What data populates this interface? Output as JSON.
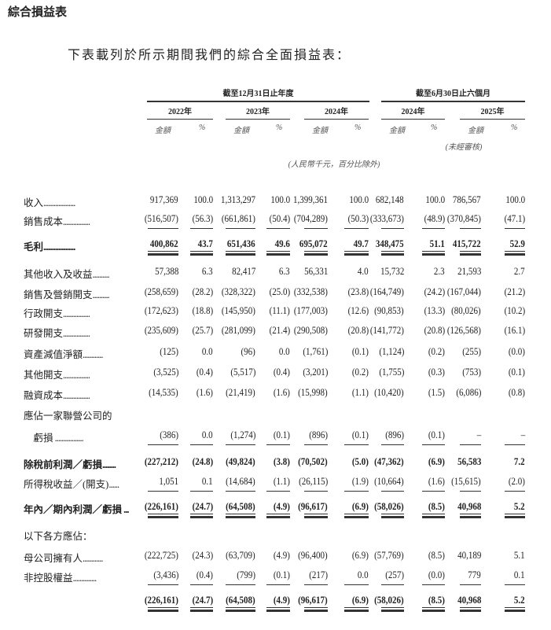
{
  "title": "綜合損益表",
  "intro": "下表載列於所示期間我們的綜合全面損益表：",
  "header": {
    "group_year": "截至12月31日止年度",
    "group_half": "截至6月30日止六個月",
    "years": [
      "2022年",
      "2023年",
      "2024年",
      "2024年",
      "2025年"
    ],
    "amount_label": "金額",
    "pct_label": "%",
    "unaudited": "(未經審核)",
    "unit_note": "(人民幣千元，百分比除外)"
  },
  "rows": [
    {
      "label": "收入",
      "dots": "...................",
      "values": [
        "917,369",
        "100.0",
        "1,313,297",
        "100.0",
        "1,399,361",
        "100.0",
        "682,148",
        "100.0",
        "786,567",
        "100.0"
      ]
    },
    {
      "label": "銷售成本",
      "dots": "................",
      "values": [
        "(516,507)",
        "(56.3)",
        "(661,861)",
        "(50.4)",
        "(704,289)",
        "(50.3)",
        "(333,673)",
        "(48.9)",
        "(370,845)",
        "(47.1)"
      ],
      "rule": "single"
    },
    {
      "label": "毛利",
      "dots": "...................",
      "values": [
        "400,862",
        "43.7",
        "651,436",
        "49.6",
        "695,072",
        "49.7",
        "348,475",
        "51.1",
        "415,722",
        "52.9"
      ],
      "bold": true,
      "rule": "double"
    },
    {
      "label": "其他收入及收益",
      "dots": "..........",
      "values": [
        "57,388",
        "6.3",
        "82,417",
        "6.3",
        "56,331",
        "4.0",
        "15,732",
        "2.3",
        "21,593",
        "2.7"
      ]
    },
    {
      "label": "銷售及營銷開支",
      "dots": "..........",
      "values": [
        "(258,659)",
        "(28.2)",
        "(328,322)",
        "(25.0)",
        "(332,538)",
        "(23.8)",
        "(164,749)",
        "(24.2)",
        "(167,044)",
        "(21.2)"
      ]
    },
    {
      "label": "行政開支",
      "dots": "................",
      "values": [
        "(172,623)",
        "(18.8)",
        "(145,950)",
        "(11.1)",
        "(177,003)",
        "(12.6)",
        "(90,853)",
        "(13.3)",
        "(80,026)",
        "(10.2)"
      ]
    },
    {
      "label": "研發開支",
      "dots": "................",
      "values": [
        "(235,609)",
        "(25.7)",
        "(281,099)",
        "(21.4)",
        "(290,508)",
        "(20.8)",
        "(141,772)",
        "(20.8)",
        "(126,568)",
        "(16.1)"
      ]
    },
    {
      "label": "資產減值淨額",
      "dots": "............",
      "values": [
        "(125)",
        "0.0",
        "(96)",
        "0.0",
        "(1,761)",
        "(0.1)",
        "(1,124)",
        "(0.2)",
        "(255)",
        "(0.0)"
      ]
    },
    {
      "label": "其他開支",
      "dots": "................",
      "values": [
        "(3,525)",
        "(0.4)",
        "(5,517)",
        "(0.4)",
        "(3,201)",
        "(0.2)",
        "(1,755)",
        "(0.3)",
        "(753)",
        "(0.1)"
      ]
    },
    {
      "label": "融資成本",
      "dots": "................",
      "values": [
        "(14,535)",
        "(1.6)",
        "(21,419)",
        "(1.6)",
        "(15,998)",
        "(1.1)",
        "(10,420)",
        "(1.5)",
        "(6,086)",
        "(0.8)"
      ]
    },
    {
      "label": "應佔一家聯營公司的",
      "dots": "",
      "values": []
    },
    {
      "label": "　虧損",
      "dots": " .................",
      "values": [
        "(386)",
        "0.0",
        "(1,274)",
        "(0.1)",
        "(896)",
        "(0.1)",
        "(896)",
        "(0.1)",
        "–",
        "–"
      ],
      "rule": "single"
    },
    {
      "label": "除稅前利潤／虧損",
      "dots": "........",
      "values": [
        "(227,212)",
        "(24.8)",
        "(49,824)",
        "(3.8)",
        "(70,502)",
        "(5.0)",
        "(47,362)",
        "(6.9)",
        "56,583",
        "7.2"
      ],
      "bold": true
    },
    {
      "label": "所得稅收益／(開支)",
      "dots": "......",
      "values": [
        "1,051",
        "0.1",
        "(14,684)",
        "(1.1)",
        "(26,115)",
        "(1.9)",
        "(10,664)",
        "(1.6)",
        "(15,615)",
        "(2.0)"
      ],
      "rule": "single"
    },
    {
      "label": "年內／期內利潤／虧損",
      "dots": " ...",
      "values": [
        "(226,161)",
        "(24.7)",
        "(64,508)",
        "(4.9)",
        "(96,617)",
        "(6.9)",
        "(58,026)",
        "(8.5)",
        "40,968",
        "5.2"
      ],
      "bold": true,
      "rule": "double"
    },
    {
      "label": "以下各方應佔：",
      "dots": "",
      "values": []
    },
    {
      "label": "母公司擁有人",
      "dots": "............",
      "values": [
        "(222,725)",
        "(24.3)",
        "(63,709)",
        "(4.9)",
        "(96,400)",
        "(6.9)",
        "(57,769)",
        "(8.5)",
        "40,189",
        "5.1"
      ]
    },
    {
      "label": "非控股權益",
      "dots": "..............",
      "values": [
        "(3,436)",
        "(0.4)",
        "(799)",
        "(0.1)",
        "(217)",
        "0.0",
        "(257)",
        "(0.0)",
        "779",
        "0.1"
      ],
      "rule": "single"
    },
    {
      "label": "",
      "dots": "",
      "values": [
        "(226,161)",
        "(24.7)",
        "(64,508)",
        "(4.9)",
        "(96,617)",
        "(6.9)",
        "(58,026)",
        "(8.5)",
        "40,968",
        "5.2"
      ],
      "bold": true,
      "rule": "double"
    }
  ]
}
